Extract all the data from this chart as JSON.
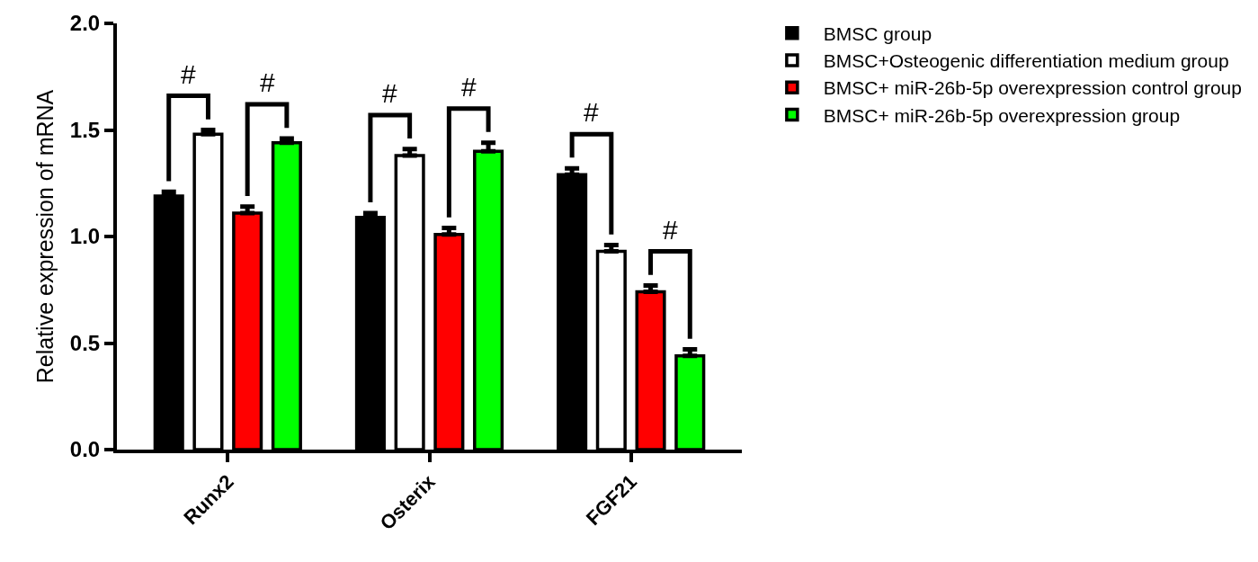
{
  "chart_data": {
    "type": "bar",
    "ylabel": "Relative expression of mRNA",
    "categories": [
      "Runx2",
      "Osterix",
      "FGF21"
    ],
    "series": [
      {
        "name": "BMSC group",
        "color": "#000000",
        "values": [
          1.19,
          1.09,
          1.29
        ],
        "errors": [
          [
            1.19,
            1.21
          ],
          [
            1.09,
            1.11
          ],
          [
            1.29,
            1.32
          ]
        ]
      },
      {
        "name": "BMSC+Osteogenic differentiation medium group",
        "color": "#ffffff",
        "values": [
          1.48,
          1.38,
          0.93
        ],
        "errors": [
          [
            1.48,
            1.5
          ],
          [
            1.38,
            1.41
          ],
          [
            0.93,
            0.96
          ]
        ]
      },
      {
        "name": "BMSC+ miR-26b-5p overexpression control group",
        "color": "#ff0000",
        "values": [
          1.11,
          1.01,
          0.74
        ],
        "errors": [
          [
            1.11,
            1.14
          ],
          [
            1.01,
            1.04
          ],
          [
            0.74,
            0.77
          ]
        ]
      },
      {
        "name": "BMSC+ miR-26b-5p overexpression group",
        "color": "#00ff00",
        "values": [
          1.44,
          1.4,
          0.44
        ],
        "errors": [
          [
            1.44,
            1.46
          ],
          [
            1.4,
            1.44
          ],
          [
            0.44,
            0.47
          ]
        ]
      }
    ],
    "annotations": [
      "#",
      "#",
      "#",
      "#",
      "#",
      "#"
    ],
    "ylim": [
      0,
      2
    ],
    "yticks": [
      {
        "value": 0,
        "label": "0.0"
      },
      {
        "value": 0.5,
        "label": "0.5"
      },
      {
        "value": 1,
        "label": "1.0"
      },
      {
        "value": 1.5,
        "label": "1.5"
      },
      {
        "value": 2,
        "label": "2.0"
      }
    ],
    "grid": false,
    "legend": "right"
  }
}
